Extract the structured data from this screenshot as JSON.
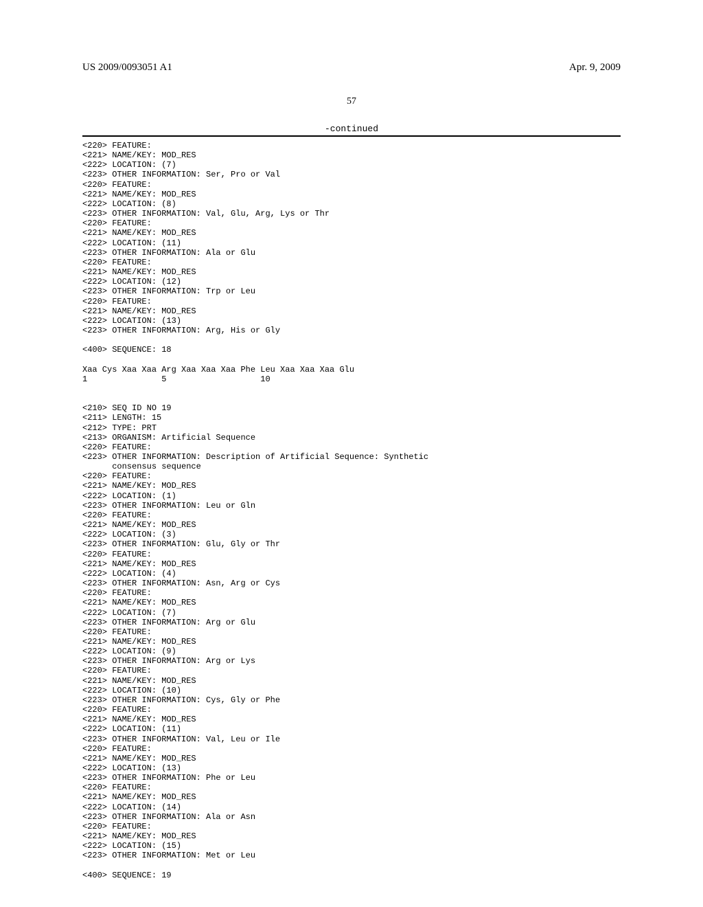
{
  "header": {
    "left": "US 2009/0093051 A1",
    "right": "Apr. 9, 2009"
  },
  "page_number": "57",
  "continued_label": "-continued",
  "seq18": {
    "feature_220": "<220> FEATURE:",
    "name_key_221": "<221> NAME/KEY: MOD_RES",
    "loc7": "<222> LOCATION: (7)",
    "info7": "<223> OTHER INFORMATION: Ser, Pro or Val",
    "loc8": "<222> LOCATION: (8)",
    "info8": "<223> OTHER INFORMATION: Val, Glu, Arg, Lys or Thr",
    "loc11": "<222> LOCATION: (11)",
    "info11": "<223> OTHER INFORMATION: Ala or Glu",
    "loc12": "<222> LOCATION: (12)",
    "info12": "<223> OTHER INFORMATION: Trp or Leu",
    "loc13": "<222> LOCATION: (13)",
    "info13": "<223> OTHER INFORMATION: Arg, His or Gly",
    "seq_header": "<400> SEQUENCE: 18",
    "seq_line": "Xaa Cys Xaa Xaa Arg Xaa Xaa Xaa Phe Leu Xaa Xaa Xaa Glu",
    "seq_nums": "1               5                   10"
  },
  "seq19": {
    "id_210": "<210> SEQ ID NO 19",
    "len_211": "<211> LENGTH: 15",
    "type_212": "<212> TYPE: PRT",
    "org_213": "<213> ORGANISM: Artificial Sequence",
    "feature_220": "<220> FEATURE:",
    "info_desc": "<223> OTHER INFORMATION: Description of Artificial Sequence: Synthetic",
    "info_desc2": "      consensus sequence",
    "name_key_221": "<221> NAME/KEY: MOD_RES",
    "loc1": "<222> LOCATION: (1)",
    "info1": "<223> OTHER INFORMATION: Leu or Gln",
    "loc3": "<222> LOCATION: (3)",
    "info3": "<223> OTHER INFORMATION: Glu, Gly or Thr",
    "loc4": "<222> LOCATION: (4)",
    "info4": "<223> OTHER INFORMATION: Asn, Arg or Cys",
    "loc7": "<222> LOCATION: (7)",
    "info7": "<223> OTHER INFORMATION: Arg or Glu",
    "loc9": "<222> LOCATION: (9)",
    "info9": "<223> OTHER INFORMATION: Arg or Lys",
    "loc10": "<222> LOCATION: (10)",
    "info10": "<223> OTHER INFORMATION: Cys, Gly or Phe",
    "loc11": "<222> LOCATION: (11)",
    "info11": "<223> OTHER INFORMATION: Val, Leu or Ile",
    "loc13": "<222> LOCATION: (13)",
    "info13": "<223> OTHER INFORMATION: Phe or Leu",
    "loc14": "<222> LOCATION: (14)",
    "info14": "<223> OTHER INFORMATION: Ala or Asn",
    "loc15": "<222> LOCATION: (15)",
    "info15": "<223> OTHER INFORMATION: Met or Leu",
    "seq_header": "<400> SEQUENCE: 19"
  }
}
